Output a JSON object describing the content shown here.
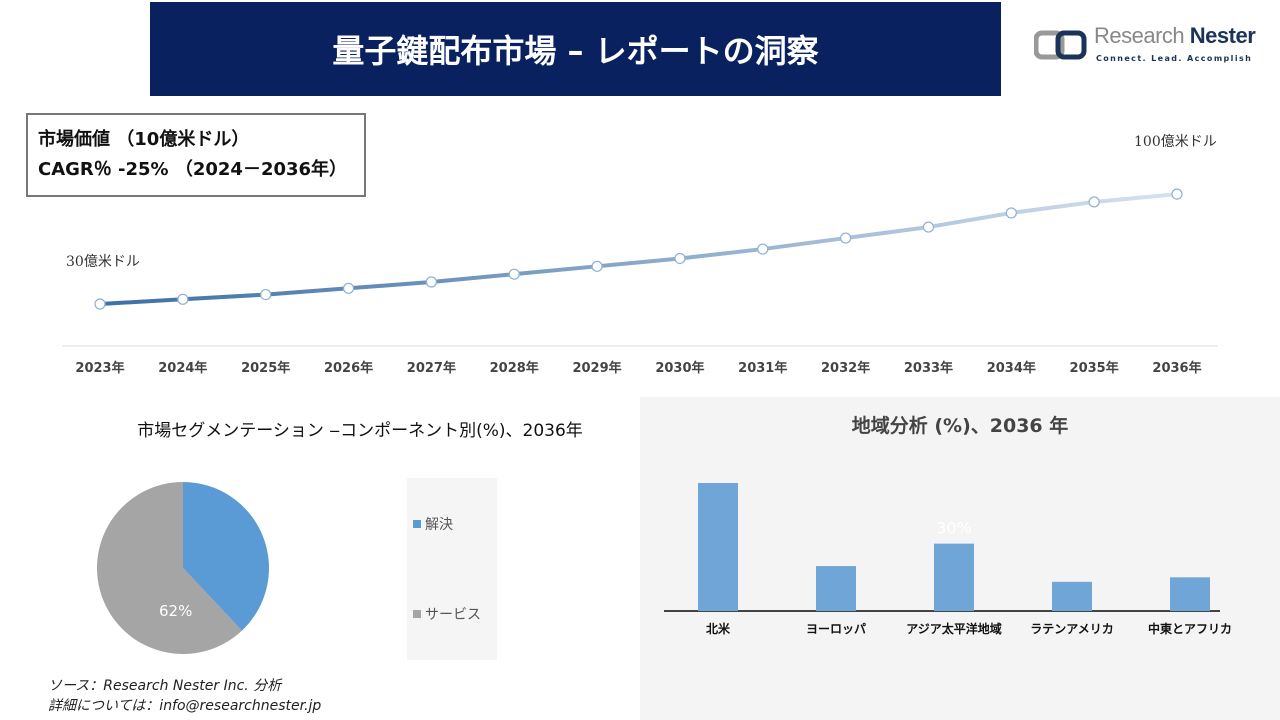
{
  "header": {
    "title": "量子鍵配布市場 – レポートの洞察"
  },
  "logo": {
    "name_light": "Research",
    "name_dark": "Nester",
    "tagline": "Connect. Lead. Accomplish"
  },
  "infobox": {
    "line1": "市場価値 （10億米ドル）",
    "line2": "CAGR％ -25% （2024－2036年）"
  },
  "colors": {
    "banner": "#0a2160",
    "line_start": "#3d6fa5",
    "line_end": "#d6e2ef",
    "bar": "#70a5d8",
    "pie_solution": "#5b9bd5",
    "pie_service": "#a5a5a5"
  },
  "chart_data": [
    {
      "type": "line",
      "x": [
        "2023年",
        "2024年",
        "2025年",
        "2026年",
        "2027年",
        "2028年",
        "2029年",
        "2030年",
        "2031年",
        "2032年",
        "2033年",
        "2034年",
        "2035年",
        "2036年"
      ],
      "values": [
        3.0,
        3.3,
        3.6,
        4.0,
        4.4,
        4.9,
        5.4,
        5.9,
        6.5,
        7.2,
        7.9,
        8.8,
        9.5,
        10.0
      ],
      "annotations": {
        "start": "30億米ドル",
        "end": "100億米ドル"
      },
      "grid": false
    },
    {
      "type": "pie",
      "title": "市場セグメンテーション ‒コンポーネント別(%)、2036年",
      "categories": [
        "解決",
        "サービス"
      ],
      "values": [
        38,
        62
      ],
      "data_labels": [
        "",
        "62%"
      ],
      "legend": "right"
    },
    {
      "type": "bar",
      "title": "地域分析 (%)、2036 年",
      "categories": [
        "北米",
        "ヨーロッパ",
        "アジア太平洋地域",
        "ラテンアメリカ",
        "中東とアフリカ"
      ],
      "values": [
        57,
        20,
        30,
        13,
        15
      ],
      "data_labels": [
        "",
        "",
        "30%",
        "",
        ""
      ]
    }
  ],
  "source": {
    "line1": "ソース：Research Nester Inc. 分析",
    "line2": "詳細については：info@researchnester.jp"
  }
}
